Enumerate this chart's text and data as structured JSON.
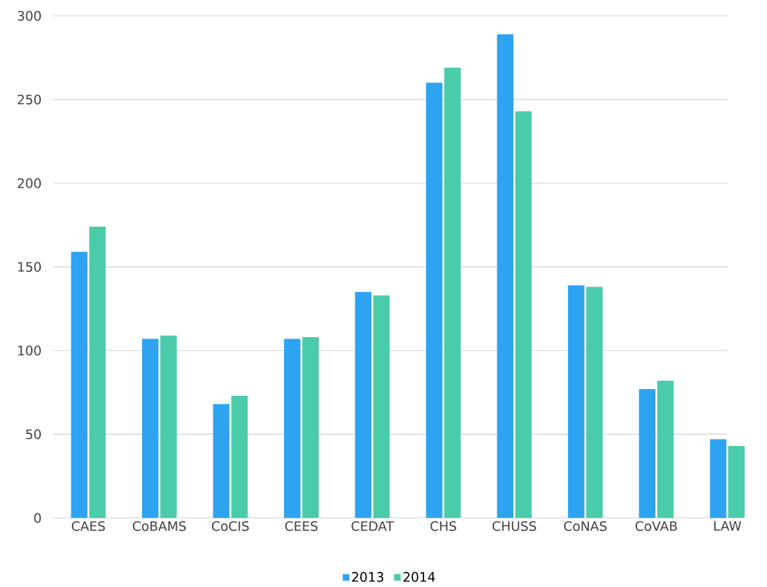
{
  "chart_data": {
    "type": "bar",
    "categories": [
      "CAES",
      "CoBAMS",
      "CoCIS",
      "CEES",
      "CEDAT",
      "CHS",
      "CHUSS",
      "CoNAS",
      "CoVAB",
      "LAW"
    ],
    "series": [
      {
        "name": "2013",
        "color": "#2ea3f2",
        "values": [
          159,
          107,
          68,
          107,
          135,
          260,
          289,
          139,
          77,
          47
        ]
      },
      {
        "name": "2014",
        "color": "#4acbaa",
        "values": [
          174,
          109,
          73,
          108,
          133,
          269,
          243,
          138,
          82,
          43
        ]
      }
    ],
    "ylim": [
      0,
      300
    ],
    "yticks": [
      0,
      50,
      100,
      150,
      200,
      250,
      300
    ],
    "grid": "y",
    "legend": "bottom"
  }
}
